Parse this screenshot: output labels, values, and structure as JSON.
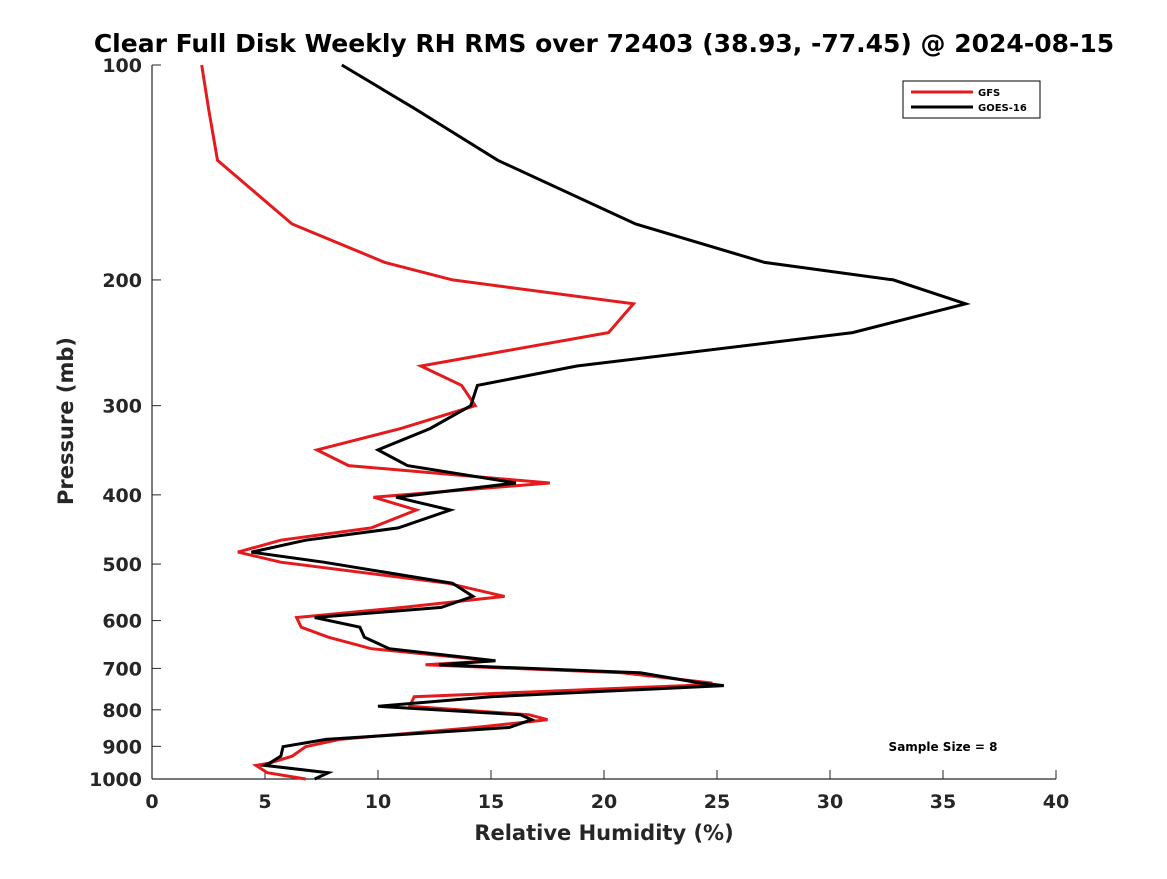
{
  "colors": {
    "background": "#ffffff",
    "axes": "#262626",
    "gfs": "#e41a1c",
    "goes16": "#000000"
  },
  "chart_data": {
    "type": "line",
    "title": "Clear Full Disk Weekly RH RMS over 72403 (38.93, -77.45) @ 2024-08-15",
    "xlabel": "Relative Humidity (%)",
    "ylabel": "Pressure (mb)",
    "xlim": [
      0,
      40
    ],
    "ylim": [
      100,
      1000
    ],
    "y_scale": "log",
    "y_direction": "reversed",
    "xticks": [
      0,
      5,
      10,
      15,
      20,
      25,
      30,
      35,
      40
    ],
    "yticks": [
      100,
      200,
      300,
      400,
      500,
      600,
      700,
      800,
      900,
      1000
    ],
    "grid": false,
    "legend_position": "top-right",
    "annotation": "Sample Size = 8",
    "series": [
      {
        "name": "GFS",
        "color": "#e41a1c",
        "points": [
          [
            2.2,
            100
          ],
          [
            2.5,
            115
          ],
          [
            2.9,
            136
          ],
          [
            6.2,
            167
          ],
          [
            10.3,
            189
          ],
          [
            13.3,
            200
          ],
          [
            21.3,
            216
          ],
          [
            20.2,
            237
          ],
          [
            11.9,
            264
          ],
          [
            13.7,
            281
          ],
          [
            14.3,
            300
          ],
          [
            11.0,
            323
          ],
          [
            7.3,
            346
          ],
          [
            8.7,
            364
          ],
          [
            17.6,
            385
          ],
          [
            9.8,
            403
          ],
          [
            11.7,
            420
          ],
          [
            9.7,
            445
          ],
          [
            5.7,
            463
          ],
          [
            3.8,
            481
          ],
          [
            5.7,
            497
          ],
          [
            13.1,
            532
          ],
          [
            15.6,
            555
          ],
          [
            11.1,
            575
          ],
          [
            6.4,
            594
          ],
          [
            6.6,
            613
          ],
          [
            7.8,
            633
          ],
          [
            9.7,
            657
          ],
          [
            15.1,
            683
          ],
          [
            12.1,
            692
          ],
          [
            20.8,
            710
          ],
          [
            24.8,
            734
          ],
          [
            23.6,
            740
          ],
          [
            11.6,
            767
          ],
          [
            11.4,
            791
          ],
          [
            16.7,
            813
          ],
          [
            17.5,
            826
          ],
          [
            14.3,
            847
          ],
          [
            8.3,
            880
          ],
          [
            6.8,
            901
          ],
          [
            6.2,
            929
          ],
          [
            5.2,
            950
          ],
          [
            4.6,
            957
          ],
          [
            5.1,
            980
          ],
          [
            6.8,
            1000
          ]
        ]
      },
      {
        "name": "GOES-16",
        "color": "#000000",
        "points": [
          [
            8.4,
            100
          ],
          [
            11.6,
            115
          ],
          [
            15.3,
            136
          ],
          [
            21.4,
            167
          ],
          [
            27.1,
            189
          ],
          [
            32.8,
            200
          ],
          [
            36.0,
            216
          ],
          [
            31.0,
            237
          ],
          [
            18.8,
            264
          ],
          [
            14.4,
            281
          ],
          [
            14.1,
            300
          ],
          [
            12.3,
            323
          ],
          [
            10.0,
            346
          ],
          [
            11.3,
            364
          ],
          [
            16.1,
            385
          ],
          [
            10.8,
            403
          ],
          [
            13.2,
            420
          ],
          [
            10.9,
            445
          ],
          [
            6.8,
            463
          ],
          [
            4.4,
            481
          ],
          [
            7.6,
            497
          ],
          [
            13.3,
            532
          ],
          [
            14.2,
            555
          ],
          [
            12.8,
            575
          ],
          [
            7.2,
            594
          ],
          [
            9.2,
            613
          ],
          [
            9.4,
            633
          ],
          [
            10.5,
            657
          ],
          [
            15.2,
            683
          ],
          [
            12.7,
            692
          ],
          [
            21.6,
            710
          ],
          [
            24.3,
            734
          ],
          [
            25.3,
            740
          ],
          [
            15.0,
            767
          ],
          [
            10.0,
            791
          ],
          [
            16.3,
            813
          ],
          [
            16.8,
            826
          ],
          [
            15.8,
            847
          ],
          [
            7.7,
            880
          ],
          [
            5.8,
            901
          ],
          [
            5.7,
            929
          ],
          [
            5.2,
            950
          ],
          [
            5.0,
            957
          ],
          [
            7.8,
            980
          ],
          [
            7.2,
            1000
          ]
        ]
      }
    ]
  }
}
